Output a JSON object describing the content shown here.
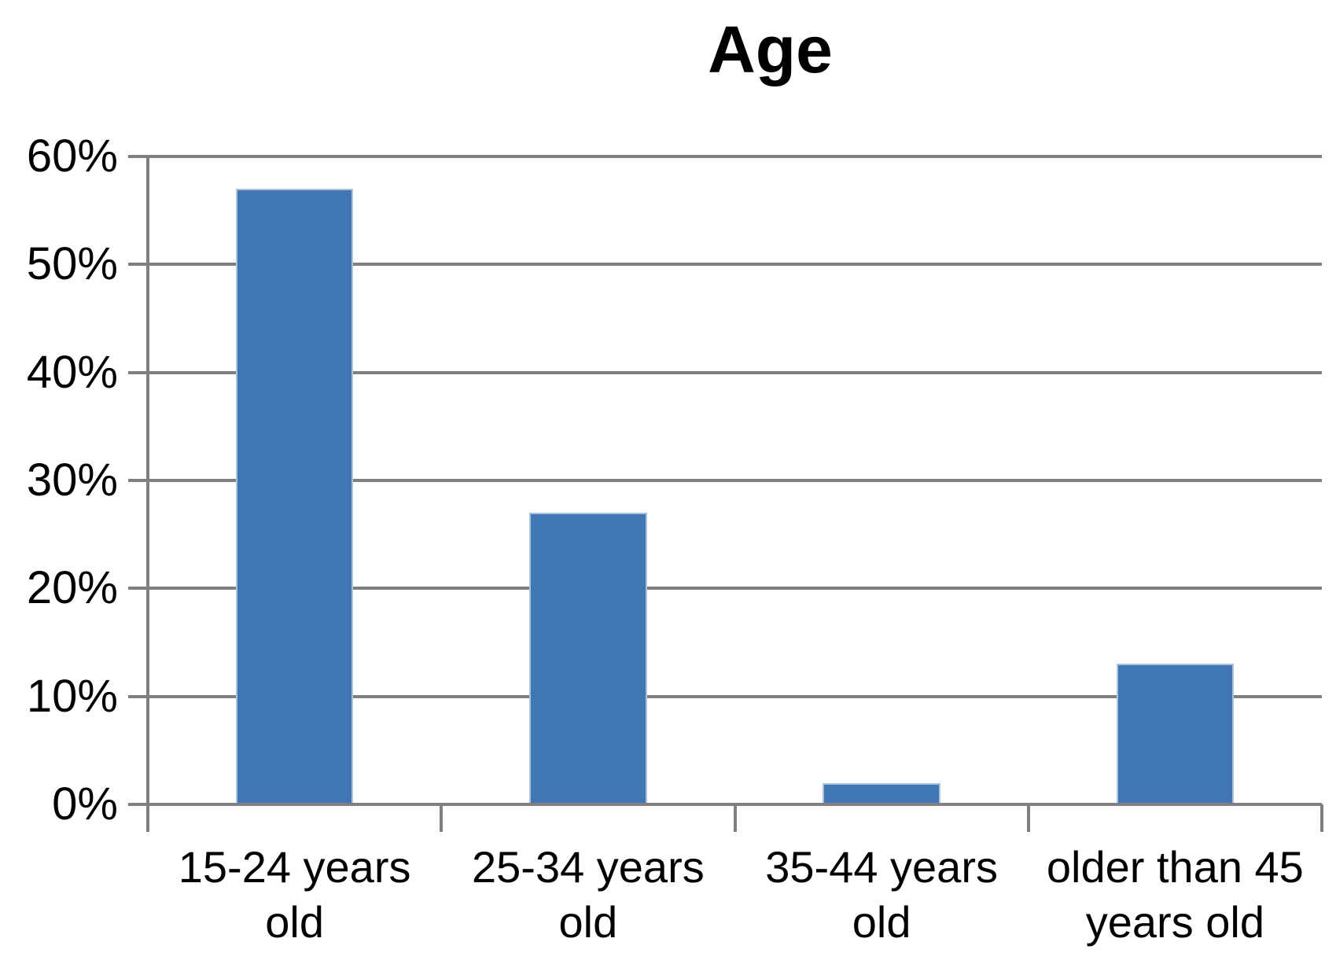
{
  "chart_data": {
    "type": "bar",
    "title": "Age",
    "categories": [
      "15-24 years old",
      "25-34 years old",
      "35-44 years old",
      "older than 45 years old"
    ],
    "category_lines": [
      [
        "15-24 years",
        "old"
      ],
      [
        "25-34 years",
        "old"
      ],
      [
        "35-44 years",
        "old"
      ],
      [
        "older than 45",
        "years old"
      ]
    ],
    "values": [
      57,
      27,
      2,
      13
    ],
    "unit": "%",
    "xlabel": "",
    "ylabel": "",
    "ylim": [
      0,
      60
    ],
    "ytick_step": 10,
    "ytick_labels": [
      "0%",
      "10%",
      "20%",
      "30%",
      "40%",
      "50%",
      "60%"
    ],
    "grid": true,
    "legend": null,
    "colors": {
      "bar_fill": "#4076B4",
      "bar_edge": "#AEC2DB",
      "gridline": "#7F7F7F",
      "text": "#000000",
      "background": "#FFFFFF"
    }
  }
}
